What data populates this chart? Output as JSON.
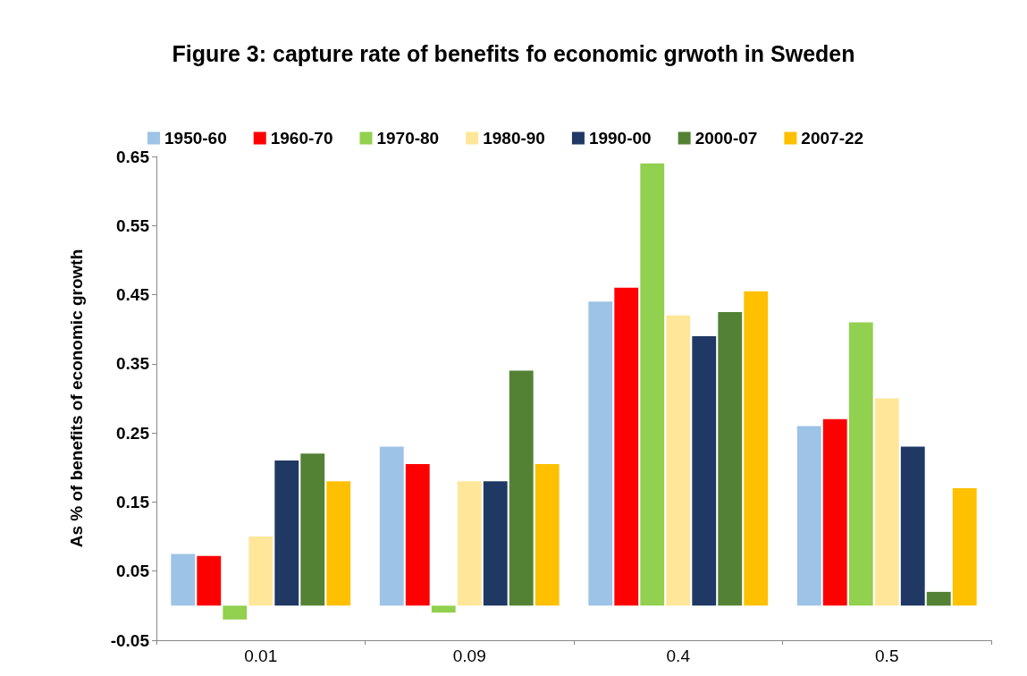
{
  "chart_data": {
    "type": "bar",
    "title": "Figure 3: capture rate of benefits fo economic grwoth in Sweden",
    "ylabel": "As % of benefits of economic growth",
    "categories": [
      "0.01",
      "0.09",
      "0.4",
      "0.5"
    ],
    "series": [
      {
        "name": "1950-60",
        "color": "#9dc3e6",
        "values": [
          0.075,
          0.23,
          0.44,
          0.26
        ]
      },
      {
        "name": "1960-70",
        "color": "#ff0000",
        "values": [
          0.072,
          0.205,
          0.46,
          0.27
        ]
      },
      {
        "name": "1970-80",
        "color": "#92d050",
        "values": [
          -0.02,
          -0.01,
          0.64,
          0.41
        ]
      },
      {
        "name": "1980-90",
        "color": "#ffe699",
        "values": [
          0.1,
          0.18,
          0.42,
          0.3
        ]
      },
      {
        "name": "1990-00",
        "color": "#1f3864",
        "values": [
          0.21,
          0.18,
          0.39,
          0.23
        ]
      },
      {
        "name": "2000-07",
        "color": "#548235",
        "values": [
          0.22,
          0.34,
          0.425,
          0.02
        ]
      },
      {
        "name": "2007-22",
        "color": "#ffc000",
        "values": [
          0.18,
          0.205,
          0.455,
          0.17
        ]
      }
    ],
    "ylim": [
      -0.05,
      0.65
    ],
    "yticks": [
      -0.05,
      0.05,
      0.15,
      0.25,
      0.35,
      0.45,
      0.55,
      0.65
    ],
    "grid": false,
    "legend": "top"
  }
}
